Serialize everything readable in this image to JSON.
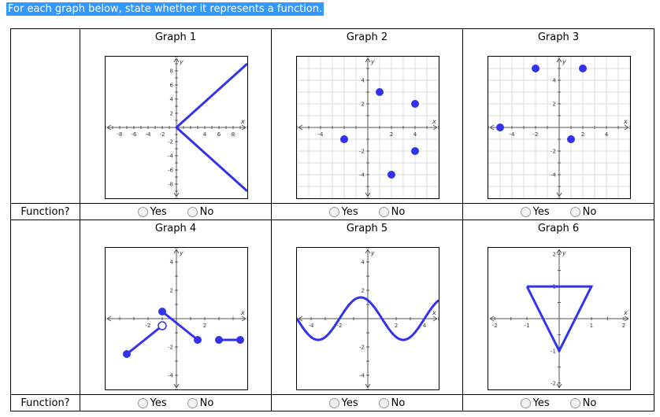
{
  "prompt": "For each graph below, state whether it represents a function.",
  "row_label": "Function?",
  "options": {
    "yes": "Yes",
    "no": "No"
  },
  "colors": {
    "curve": "#3333ee",
    "grid": "#dcdcdc",
    "axis": "#555555",
    "highlight": "#3399ff"
  },
  "graphs": [
    {
      "title": "Graph 1",
      "xlim": [
        -10,
        10
      ],
      "ylim": [
        -10,
        10
      ],
      "step": 1,
      "labelStep": 2,
      "gridlines": false,
      "ticksX": [
        -8,
        -6,
        -4,
        -2,
        4,
        6,
        8
      ],
      "ticksY": [
        8,
        6,
        4,
        2,
        -2,
        -4,
        -6,
        -8
      ],
      "lines": [
        [
          [
            10,
            9
          ],
          [
            0,
            0
          ],
          [
            10,
            -9
          ]
        ]
      ],
      "dots": [],
      "open": []
    },
    {
      "title": "Graph 2",
      "xlim": [
        -6,
        6
      ],
      "ylim": [
        -6,
        6
      ],
      "step": 1,
      "labelStep": 2,
      "gridlines": true,
      "ticksX": [
        -4,
        2,
        4
      ],
      "ticksY": [
        4,
        2,
        -2,
        -4
      ],
      "lines": [],
      "dots": [
        [
          -2,
          -1
        ],
        [
          1,
          3
        ],
        [
          4,
          2
        ],
        [
          4,
          -2
        ],
        [
          2,
          -4
        ]
      ],
      "open": []
    },
    {
      "title": "Graph 3",
      "xlim": [
        -6,
        6
      ],
      "ylim": [
        -6,
        6
      ],
      "step": 1,
      "labelStep": 2,
      "gridlines": true,
      "ticksX": [
        -4,
        -2,
        2,
        4
      ],
      "ticksY": [
        4,
        2,
        -2,
        -4
      ],
      "lines": [],
      "dots": [
        [
          -2,
          5
        ],
        [
          2,
          5
        ],
        [
          -5,
          0
        ],
        [
          1,
          -1
        ]
      ],
      "open": []
    },
    {
      "title": "Graph 4",
      "xlim": [
        -5,
        5
      ],
      "ylim": [
        -5,
        5
      ],
      "step": 1,
      "labelStep": 2,
      "gridlines": false,
      "ticksX": [
        -2,
        2
      ],
      "ticksY": [
        4,
        2,
        -2,
        -4
      ],
      "lines": [
        [
          [
            -3.5,
            -2.5
          ],
          [
            -1,
            -0.5
          ]
        ],
        [
          [
            -1,
            0.5
          ],
          [
            1.5,
            -1.5
          ]
        ],
        [
          [
            3,
            -1.5
          ],
          [
            4.5,
            -1.5
          ]
        ]
      ],
      "dots": [
        [
          -3.5,
          -2.5
        ],
        [
          -1,
          0.5
        ],
        [
          1.5,
          -1.5
        ],
        [
          3,
          -1.5
        ],
        [
          4.5,
          -1.5
        ]
      ],
      "open": [
        [
          -1,
          -0.5
        ]
      ]
    },
    {
      "title": "Graph 5",
      "xlim": [
        -5,
        5
      ],
      "ylim": [
        -5,
        5
      ],
      "step": 1,
      "labelStep": 2,
      "gridlines": false,
      "ticksX": [
        -4,
        -2,
        2,
        4
      ],
      "ticksY": [
        4,
        2,
        -2,
        -4
      ],
      "lines": [],
      "dots": [],
      "open": [],
      "sine": {
        "amp": 1.5,
        "period": 6,
        "phase": -0.5
      }
    },
    {
      "title": "Graph 6",
      "xlim": [
        -2.2,
        2.2
      ],
      "ylim": [
        -2.2,
        2.2
      ],
      "step": 0.5,
      "labelStep": 1,
      "gridlines": false,
      "ticksX": [
        -2,
        -1,
        1,
        2
      ],
      "ticksY": [
        2,
        1,
        -1,
        -2
      ],
      "lines": [
        [
          [
            -1,
            1
          ],
          [
            1,
            1
          ],
          [
            0,
            -1
          ],
          [
            -1,
            1
          ]
        ]
      ],
      "dots": [],
      "open": []
    }
  ]
}
